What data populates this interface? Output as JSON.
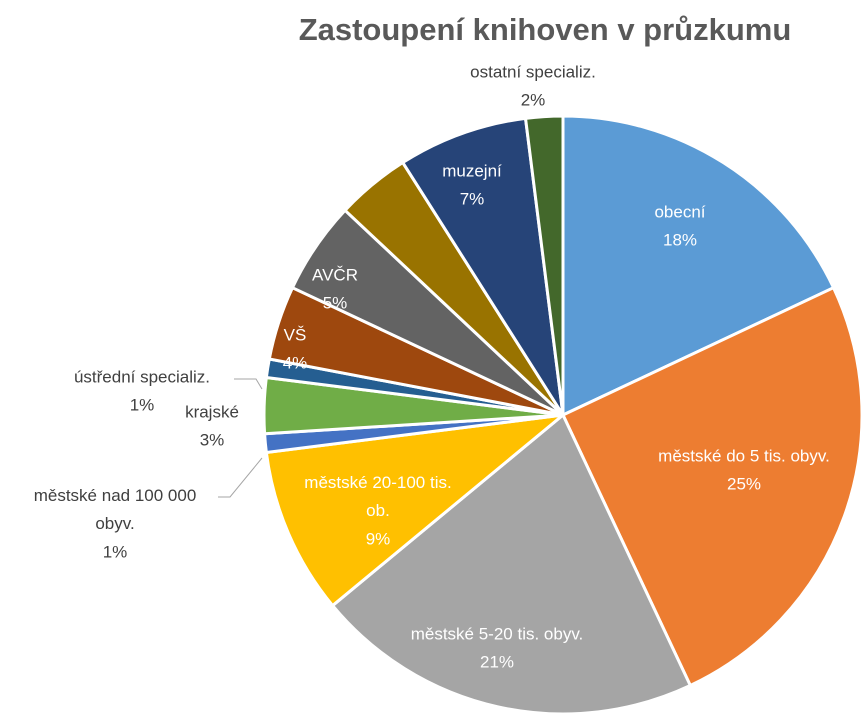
{
  "chart_data": {
    "type": "pie",
    "title": "Zastoupení knihoven v průzkumu",
    "categories": [
      "obecní",
      "městské do 5 tis. obyv.",
      "městské 5-20 tis. obyv.",
      "městské 20-100 tis. ob.",
      "městské nad 100 000 obyv.",
      "krajské",
      "ústřední specializ.",
      "VŠ",
      "AVČR",
      null,
      "muzejní",
      "ostatní specializ."
    ],
    "values": [
      18,
      25,
      21,
      9,
      1,
      3,
      1,
      4,
      5,
      4,
      7,
      2
    ],
    "value_labels": [
      "18%",
      "25%",
      "21%",
      "9%",
      "1%",
      "3%",
      "1%",
      "4%",
      "5%",
      null,
      "7%",
      "2%"
    ],
    "colors": [
      "#5b9bd5",
      "#ed7d31",
      "#a5a5a5",
      "#ffc000",
      "#4472c4",
      "#70ad47",
      "#255e91",
      "#9e480e",
      "#636363",
      "#997300",
      "#264478",
      "#43682b"
    ]
  }
}
